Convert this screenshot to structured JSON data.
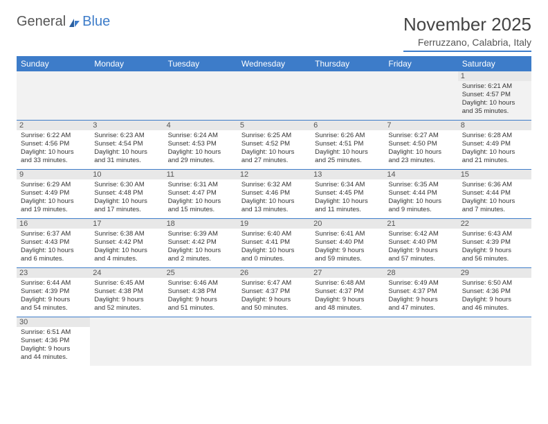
{
  "logo": {
    "general": "General",
    "blue": "Blue"
  },
  "title": "November 2025",
  "location": "Ferruzzano, Calabria, Italy",
  "headers": [
    "Sunday",
    "Monday",
    "Tuesday",
    "Wednesday",
    "Thursday",
    "Friday",
    "Saturday"
  ],
  "colors": {
    "accent": "#3d7cc9",
    "header_text": "#ffffff",
    "daynum_bg": "#e8e8e8",
    "empty_bg": "#f2f2f2"
  },
  "weeks": [
    [
      null,
      null,
      null,
      null,
      null,
      null,
      {
        "n": "1",
        "sr": "Sunrise: 6:21 AM",
        "ss": "Sunset: 4:57 PM",
        "dl1": "Daylight: 10 hours",
        "dl2": "and 35 minutes."
      }
    ],
    [
      {
        "n": "2",
        "sr": "Sunrise: 6:22 AM",
        "ss": "Sunset: 4:56 PM",
        "dl1": "Daylight: 10 hours",
        "dl2": "and 33 minutes."
      },
      {
        "n": "3",
        "sr": "Sunrise: 6:23 AM",
        "ss": "Sunset: 4:54 PM",
        "dl1": "Daylight: 10 hours",
        "dl2": "and 31 minutes."
      },
      {
        "n": "4",
        "sr": "Sunrise: 6:24 AM",
        "ss": "Sunset: 4:53 PM",
        "dl1": "Daylight: 10 hours",
        "dl2": "and 29 minutes."
      },
      {
        "n": "5",
        "sr": "Sunrise: 6:25 AM",
        "ss": "Sunset: 4:52 PM",
        "dl1": "Daylight: 10 hours",
        "dl2": "and 27 minutes."
      },
      {
        "n": "6",
        "sr": "Sunrise: 6:26 AM",
        "ss": "Sunset: 4:51 PM",
        "dl1": "Daylight: 10 hours",
        "dl2": "and 25 minutes."
      },
      {
        "n": "7",
        "sr": "Sunrise: 6:27 AM",
        "ss": "Sunset: 4:50 PM",
        "dl1": "Daylight: 10 hours",
        "dl2": "and 23 minutes."
      },
      {
        "n": "8",
        "sr": "Sunrise: 6:28 AM",
        "ss": "Sunset: 4:49 PM",
        "dl1": "Daylight: 10 hours",
        "dl2": "and 21 minutes."
      }
    ],
    [
      {
        "n": "9",
        "sr": "Sunrise: 6:29 AM",
        "ss": "Sunset: 4:49 PM",
        "dl1": "Daylight: 10 hours",
        "dl2": "and 19 minutes."
      },
      {
        "n": "10",
        "sr": "Sunrise: 6:30 AM",
        "ss": "Sunset: 4:48 PM",
        "dl1": "Daylight: 10 hours",
        "dl2": "and 17 minutes."
      },
      {
        "n": "11",
        "sr": "Sunrise: 6:31 AM",
        "ss": "Sunset: 4:47 PM",
        "dl1": "Daylight: 10 hours",
        "dl2": "and 15 minutes."
      },
      {
        "n": "12",
        "sr": "Sunrise: 6:32 AM",
        "ss": "Sunset: 4:46 PM",
        "dl1": "Daylight: 10 hours",
        "dl2": "and 13 minutes."
      },
      {
        "n": "13",
        "sr": "Sunrise: 6:34 AM",
        "ss": "Sunset: 4:45 PM",
        "dl1": "Daylight: 10 hours",
        "dl2": "and 11 minutes."
      },
      {
        "n": "14",
        "sr": "Sunrise: 6:35 AM",
        "ss": "Sunset: 4:44 PM",
        "dl1": "Daylight: 10 hours",
        "dl2": "and 9 minutes."
      },
      {
        "n": "15",
        "sr": "Sunrise: 6:36 AM",
        "ss": "Sunset: 4:44 PM",
        "dl1": "Daylight: 10 hours",
        "dl2": "and 7 minutes."
      }
    ],
    [
      {
        "n": "16",
        "sr": "Sunrise: 6:37 AM",
        "ss": "Sunset: 4:43 PM",
        "dl1": "Daylight: 10 hours",
        "dl2": "and 6 minutes."
      },
      {
        "n": "17",
        "sr": "Sunrise: 6:38 AM",
        "ss": "Sunset: 4:42 PM",
        "dl1": "Daylight: 10 hours",
        "dl2": "and 4 minutes."
      },
      {
        "n": "18",
        "sr": "Sunrise: 6:39 AM",
        "ss": "Sunset: 4:42 PM",
        "dl1": "Daylight: 10 hours",
        "dl2": "and 2 minutes."
      },
      {
        "n": "19",
        "sr": "Sunrise: 6:40 AM",
        "ss": "Sunset: 4:41 PM",
        "dl1": "Daylight: 10 hours",
        "dl2": "and 0 minutes."
      },
      {
        "n": "20",
        "sr": "Sunrise: 6:41 AM",
        "ss": "Sunset: 4:40 PM",
        "dl1": "Daylight: 9 hours",
        "dl2": "and 59 minutes."
      },
      {
        "n": "21",
        "sr": "Sunrise: 6:42 AM",
        "ss": "Sunset: 4:40 PM",
        "dl1": "Daylight: 9 hours",
        "dl2": "and 57 minutes."
      },
      {
        "n": "22",
        "sr": "Sunrise: 6:43 AM",
        "ss": "Sunset: 4:39 PM",
        "dl1": "Daylight: 9 hours",
        "dl2": "and 56 minutes."
      }
    ],
    [
      {
        "n": "23",
        "sr": "Sunrise: 6:44 AM",
        "ss": "Sunset: 4:39 PM",
        "dl1": "Daylight: 9 hours",
        "dl2": "and 54 minutes."
      },
      {
        "n": "24",
        "sr": "Sunrise: 6:45 AM",
        "ss": "Sunset: 4:38 PM",
        "dl1": "Daylight: 9 hours",
        "dl2": "and 52 minutes."
      },
      {
        "n": "25",
        "sr": "Sunrise: 6:46 AM",
        "ss": "Sunset: 4:38 PM",
        "dl1": "Daylight: 9 hours",
        "dl2": "and 51 minutes."
      },
      {
        "n": "26",
        "sr": "Sunrise: 6:47 AM",
        "ss": "Sunset: 4:37 PM",
        "dl1": "Daylight: 9 hours",
        "dl2": "and 50 minutes."
      },
      {
        "n": "27",
        "sr": "Sunrise: 6:48 AM",
        "ss": "Sunset: 4:37 PM",
        "dl1": "Daylight: 9 hours",
        "dl2": "and 48 minutes."
      },
      {
        "n": "28",
        "sr": "Sunrise: 6:49 AM",
        "ss": "Sunset: 4:37 PM",
        "dl1": "Daylight: 9 hours",
        "dl2": "and 47 minutes."
      },
      {
        "n": "29",
        "sr": "Sunrise: 6:50 AM",
        "ss": "Sunset: 4:36 PM",
        "dl1": "Daylight: 9 hours",
        "dl2": "and 46 minutes."
      }
    ],
    [
      {
        "n": "30",
        "sr": "Sunrise: 6:51 AM",
        "ss": "Sunset: 4:36 PM",
        "dl1": "Daylight: 9 hours",
        "dl2": "and 44 minutes."
      },
      null,
      null,
      null,
      null,
      null,
      null
    ]
  ]
}
